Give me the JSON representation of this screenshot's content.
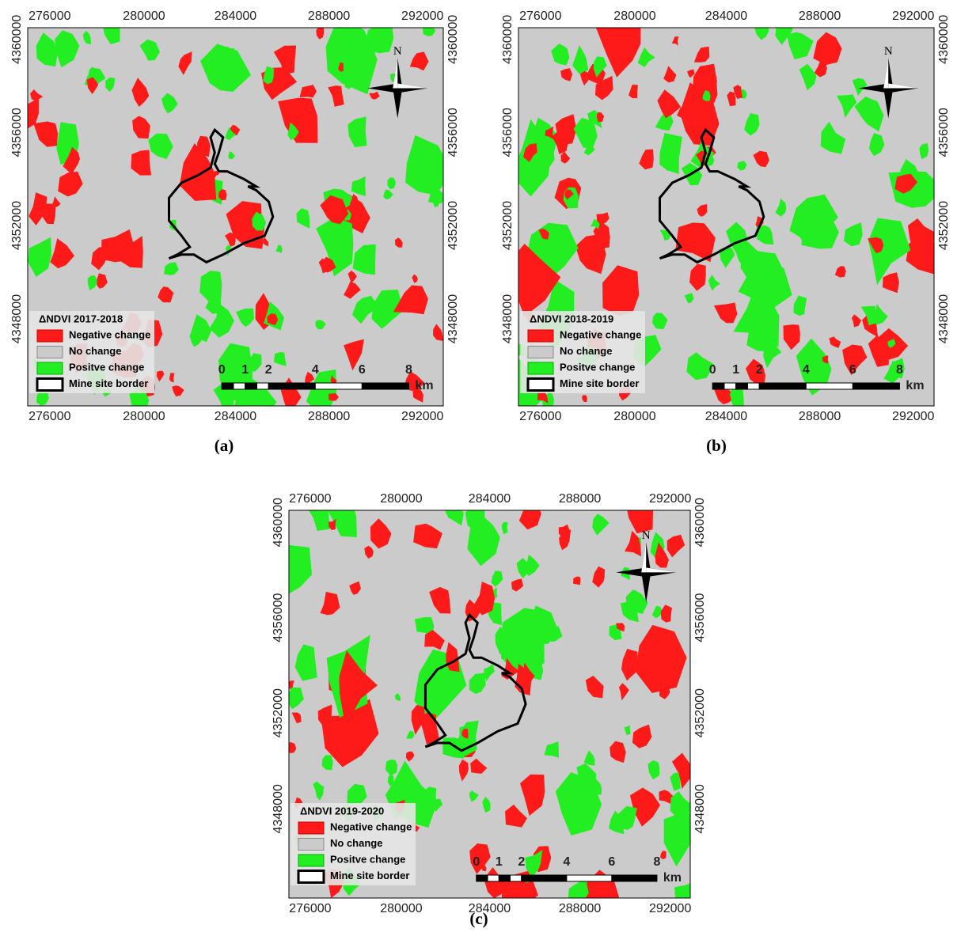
{
  "panels": [
    {
      "label": "(a)",
      "legend_title": "ΔNDVI 2017-2018",
      "legend_items": [
        "Negative change",
        "No change",
        "Positve change",
        "Mine site border"
      ],
      "x_ticks": [
        "276000",
        "280000",
        "284000",
        "288000",
        "292000"
      ],
      "y_ticks": [
        "4360000",
        "4356000",
        "4352000",
        "4348000"
      ],
      "scale_labels": [
        "0",
        "1",
        "2",
        "4",
        "6",
        "8"
      ],
      "scale_unit": "km",
      "north": "N"
    },
    {
      "label": "(b)",
      "legend_title": "ΔNDVI 2018-2019",
      "legend_items": [
        "Negative change",
        "No change",
        "Positve change",
        "Mine site border"
      ],
      "x_ticks": [
        "276000",
        "280000",
        "284000",
        "288000",
        "292000"
      ],
      "y_ticks": [
        "4360000",
        "4356000",
        "4352000",
        "4348000"
      ],
      "scale_labels": [
        "0",
        "1",
        "2",
        "4",
        "6",
        "8"
      ],
      "scale_unit": "km",
      "north": "N"
    },
    {
      "label": "(c)",
      "legend_title": "ΔNDVI 2019-2020",
      "legend_items": [
        "Negative change",
        "No change",
        "Positve change",
        "Mine site border"
      ],
      "x_ticks": [
        "276000",
        "280000",
        "284000",
        "288000",
        "292000"
      ],
      "y_ticks": [
        "4360000",
        "4356000",
        "4352000",
        "4348000"
      ],
      "scale_labels": [
        "0",
        "1",
        "2",
        "4",
        "6",
        "8"
      ],
      "scale_unit": "km",
      "north": "N"
    }
  ]
}
